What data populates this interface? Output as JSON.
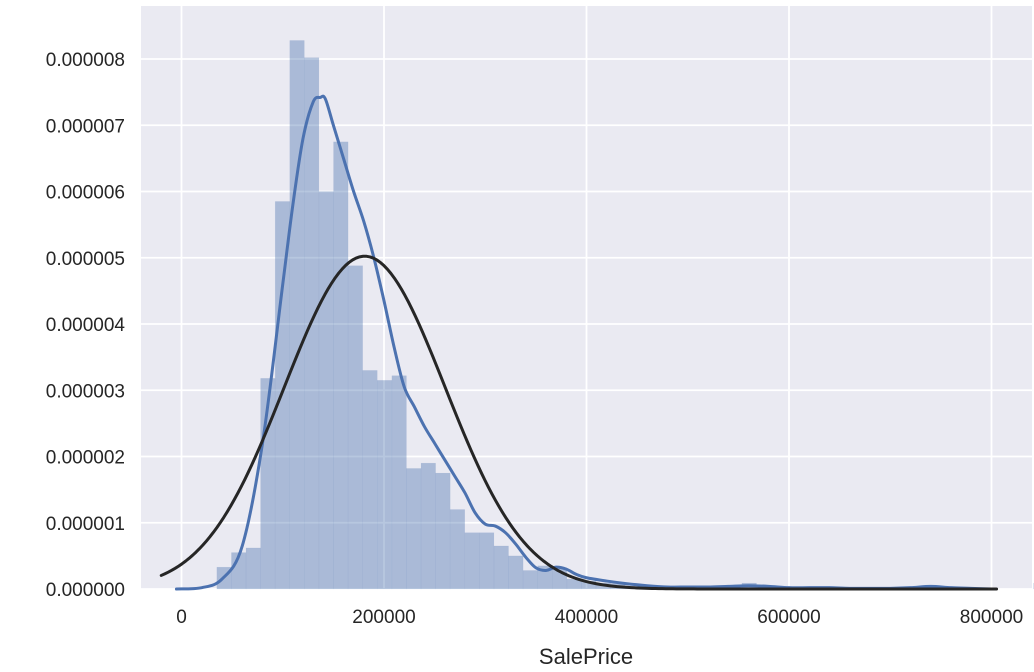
{
  "chart_data": {
    "type": "histogram",
    "title": "",
    "xlabel": "SalePrice",
    "ylabel": "",
    "xlim": [
      -40000,
      840000
    ],
    "ylim": [
      0,
      8.8e-06
    ],
    "grid": true,
    "x_ticks": [
      {
        "value": 0,
        "label": "0"
      },
      {
        "value": 200000,
        "label": "200000"
      },
      {
        "value": 400000,
        "label": "400000"
      },
      {
        "value": 600000,
        "label": "600000"
      },
      {
        "value": 800000,
        "label": "800000"
      }
    ],
    "y_ticks": [
      {
        "value": 0,
        "label": "0.000000"
      },
      {
        "value": 1e-06,
        "label": "0.000001"
      },
      {
        "value": 2e-06,
        "label": "0.000002"
      },
      {
        "value": 3e-06,
        "label": "0.000003"
      },
      {
        "value": 4e-06,
        "label": "0.000004"
      },
      {
        "value": 5e-06,
        "label": "0.000005"
      },
      {
        "value": 6e-06,
        "label": "0.000006"
      },
      {
        "value": 7e-06,
        "label": "0.000007"
      },
      {
        "value": 8e-06,
        "label": "0.000008"
      }
    ],
    "bins": {
      "start": 34900,
      "width": 14405,
      "values": [
        3.3e-07,
        5.5e-07,
        6.2e-07,
        3.18e-06,
        5.85e-06,
        8.28e-06,
        8.02e-06,
        6e-06,
        6.75e-06,
        4.88e-06,
        3.3e-06,
        3.15e-06,
        3.22e-06,
        1.82e-06,
        1.9e-06,
        1.75e-06,
        1.2e-06,
        8.5e-07,
        8.5e-07,
        6.5e-07,
        5e-07,
        2.8e-07,
        3.5e-07,
        3.2e-07,
        1.5e-07,
        1.2e-07,
        9e-08,
        8e-08,
        4e-08,
        3e-08,
        4e-08,
        3e-08,
        2e-08,
        1e-08,
        2e-08,
        1e-08,
        9e-08,
        1e-08,
        1e-08,
        1e-08,
        1e-08,
        0,
        0,
        0,
        0,
        0,
        0,
        0,
        0,
        0,
        0,
        0,
        0,
        0,
        0,
        0,
        9e-08,
        0
      ],
      "color": "#4c72b0",
      "alpha": 0.4
    },
    "series": [
      {
        "kind": "kde",
        "color": "#4c72b0",
        "x": [
          -5000,
          20000,
          40000,
          60000,
          80000,
          100000,
          110000,
          120000,
          130000,
          137000,
          142000,
          150000,
          160000,
          170000,
          180000,
          190000,
          200000,
          210000,
          220000,
          230000,
          240000,
          250000,
          260000,
          270000,
          280000,
          290000,
          300000,
          310000,
          320000,
          330000,
          340000,
          350000,
          360000,
          370000,
          380000,
          390000,
          400000,
          420000,
          440000,
          460000,
          480000,
          500000,
          520000,
          540000,
          560000,
          580000,
          600000,
          620000,
          640000,
          660000,
          680000,
          700000,
          720000,
          740000,
          760000,
          780000,
          800000
        ],
        "y": [
          0,
          2e-08,
          1.5e-07,
          6.5e-07,
          2.2e-06,
          4.6e-06,
          5.8e-06,
          6.8e-06,
          7.35e-06,
          7.42e-06,
          7.4e-06,
          7e-06,
          6.5e-06,
          6e-06,
          5.55e-06,
          5e-06,
          4.35e-06,
          3.65e-06,
          3.05e-06,
          2.75e-06,
          2.45e-06,
          2.2e-06,
          1.95e-06,
          1.7e-06,
          1.45e-06,
          1.15e-06,
          9.8e-07,
          9.5e-07,
          8.5e-07,
          6.8e-07,
          4.8e-07,
          3.2e-07,
          2.8e-07,
          3.3e-07,
          3e-07,
          2.2e-07,
          1.7e-07,
          1.2e-07,
          8e-08,
          5e-08,
          3e-08,
          3e-08,
          3e-08,
          4e-08,
          5e-08,
          4e-08,
          2e-08,
          2e-08,
          2e-08,
          1e-08,
          1e-08,
          1e-08,
          2e-08,
          4e-08,
          2e-08,
          1e-08,
          0
        ]
      },
      {
        "kind": "normal-fit",
        "color": "#262626",
        "mean": 180921,
        "std": 79415,
        "x_range": [
          -20000,
          805000
        ]
      }
    ],
    "colors": {
      "plot_background": "#eaeaf2",
      "grid": "#ffffff",
      "text": "#262626"
    }
  }
}
